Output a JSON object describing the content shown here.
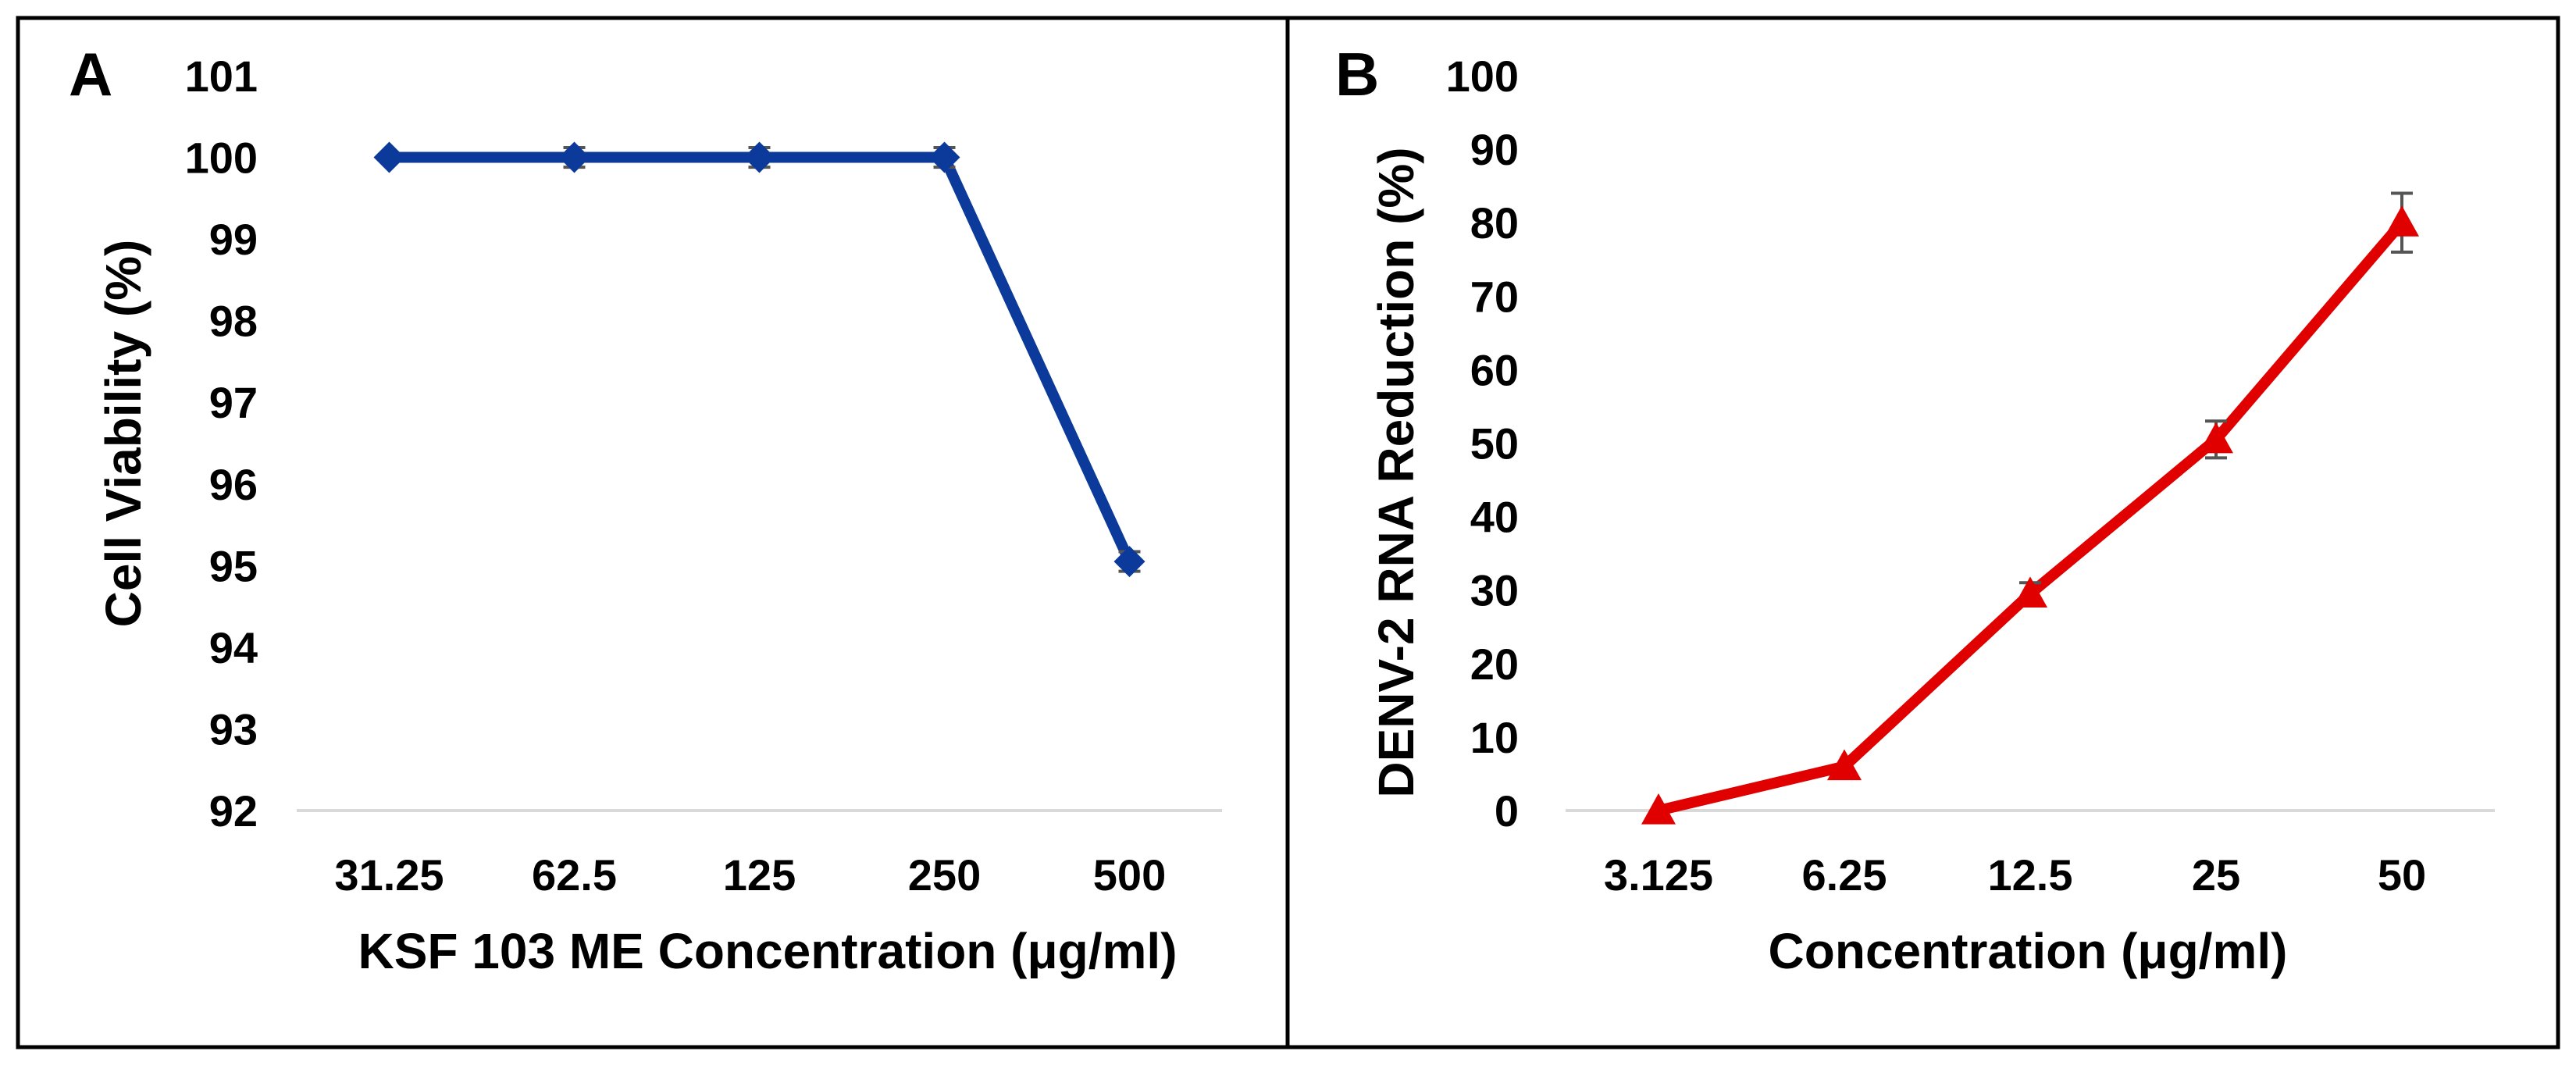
{
  "chart_data": [
    {
      "panel_label": "A",
      "type": "line",
      "xlabel": "KSF 103 ME Concentration (μg/ml)",
      "ylabel": "Cell Viability (%)",
      "categories": [
        "31.25",
        "62.5",
        "125",
        "250",
        "500"
      ],
      "ylim": [
        92,
        101
      ],
      "yticks": [
        "92",
        "93",
        "94",
        "95",
        "96",
        "97",
        "98",
        "99",
        "100",
        "101"
      ],
      "series": [
        {
          "name": "Cell Viability",
          "marker": "diamond",
          "color": "#0b3a9a",
          "values": [
            100,
            100,
            100,
            100,
            95.05
          ],
          "errors": [
            0,
            0.12,
            0.12,
            0.12,
            0.12
          ]
        }
      ]
    },
    {
      "panel_label": "B",
      "type": "line",
      "xlabel": "Concentration (μg/ml)",
      "ylabel": "DENV-2 RNA Reduction (%)",
      "categories": [
        "3.125",
        "6.25",
        "12.5",
        "25",
        "50"
      ],
      "ylim": [
        0,
        100
      ],
      "yticks": [
        "0",
        "10",
        "20",
        "30",
        "40",
        "50",
        "60",
        "70",
        "80",
        "90",
        "100"
      ],
      "series": [
        {
          "name": "DENV-2 RNA Reduction",
          "marker": "triangle",
          "color": "#e00000",
          "values": [
            0,
            6,
            29.5,
            50.5,
            80
          ],
          "errors": [
            0,
            0,
            1.5,
            2.5,
            4
          ]
        }
      ]
    }
  ]
}
